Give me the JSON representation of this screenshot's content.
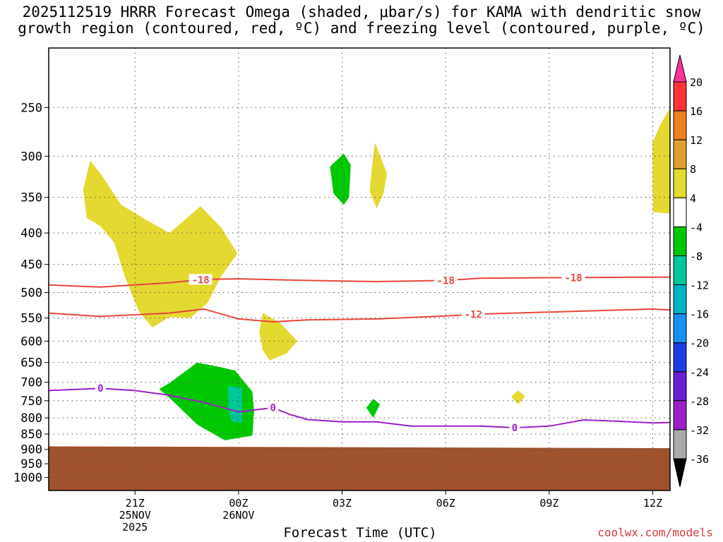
{
  "title": {
    "line1": "2025112519 HRRR Forecast Omega (shaded, μbar/s) for KAMA with dendritic snow",
    "line2": "growth region (contoured, red, ºC) and freezing level (contoured, purple, ºC)"
  },
  "xlabel": "Forecast Time (UTC)",
  "credit": "coolwx.com/models",
  "chart_data": {
    "type": "contour",
    "x_domain_hours": [
      -2.5,
      15.5
    ],
    "y_axis": {
      "scale": "log-pressure",
      "range_mb": [
        200,
        1050
      ],
      "ticks": [
        "250",
        "300",
        "350",
        "400",
        "450",
        "500",
        "550",
        "600",
        "650",
        "700",
        "750",
        "800",
        "850",
        "900",
        "950",
        "1000"
      ]
    },
    "x_ticks": [
      {
        "hour": 0,
        "label": "21Z",
        "sub1": "25NOV",
        "sub2": "2025"
      },
      {
        "hour": 3,
        "label": "00Z",
        "sub1": "26NOV",
        "sub2": ""
      },
      {
        "hour": 6,
        "label": "03Z",
        "sub1": "",
        "sub2": ""
      },
      {
        "hour": 9,
        "label": "06Z",
        "sub1": "",
        "sub2": ""
      },
      {
        "hour": 12,
        "label": "09Z",
        "sub1": "",
        "sub2": ""
      },
      {
        "hour": 15,
        "label": "12Z",
        "sub1": "",
        "sub2": ""
      }
    ],
    "grid": true,
    "ground_color": "#a0522d",
    "ground_top_mb": [
      [
        -2.5,
        890
      ],
      [
        3,
        892
      ],
      [
        15.5,
        896
      ]
    ],
    "colorbar": {
      "labels": [
        "20",
        "16",
        "12",
        "8",
        "4",
        "-4",
        "-8",
        "-12",
        "-16",
        "-20",
        "-24",
        "-28",
        "-32",
        "-36"
      ],
      "colors": [
        "#ff3399",
        "#ff3333",
        "#f07f20",
        "#e0a030",
        "#e0dc30",
        "#ffffff",
        "#00c800",
        "#00c89a",
        "#00b4c8",
        "#1890f0",
        "#1e3ce6",
        "#6a1ed2",
        "#9b1fc8",
        "#aaaaaa",
        "#000000"
      ]
    },
    "shading": [
      {
        "color": "#e4d930",
        "pts": [
          [
            -1.3,
            305
          ],
          [
            -1.0,
            320
          ],
          [
            -0.4,
            360
          ],
          [
            0.3,
            380
          ],
          [
            1.0,
            400
          ],
          [
            1.9,
            362
          ],
          [
            2.5,
            392
          ],
          [
            2.97,
            432
          ],
          [
            2.5,
            470
          ],
          [
            2.1,
            520
          ],
          [
            1.6,
            550
          ],
          [
            1.0,
            548
          ],
          [
            0.5,
            570
          ],
          [
            0.1,
            535
          ],
          [
            -0.3,
            470
          ],
          [
            -0.6,
            415
          ],
          [
            -1.0,
            390
          ],
          [
            -1.4,
            378
          ],
          [
            -1.5,
            340
          ]
        ]
      },
      {
        "color": "#e4d930",
        "pts": [
          [
            3.7,
            540
          ],
          [
            4.2,
            560
          ],
          [
            4.7,
            600
          ],
          [
            4.4,
            628
          ],
          [
            3.9,
            645
          ],
          [
            3.7,
            620
          ],
          [
            3.6,
            580
          ]
        ]
      },
      {
        "color": "#e4d930",
        "pts": [
          [
            6.95,
            285
          ],
          [
            7.3,
            320
          ],
          [
            7.2,
            345
          ],
          [
            7.0,
            365
          ],
          [
            6.8,
            342
          ],
          [
            6.85,
            318
          ]
        ]
      },
      {
        "color": "#e4d930",
        "pts": [
          [
            15.5,
            250
          ],
          [
            15.2,
            268
          ],
          [
            14.99,
            285
          ],
          [
            15.0,
            370
          ],
          [
            15.5,
            372
          ]
        ]
      },
      {
        "color": "#e4d930",
        "pts": [
          [
            11.1,
            722
          ],
          [
            11.3,
            738
          ],
          [
            11.1,
            760
          ],
          [
            10.9,
            738
          ]
        ]
      },
      {
        "color": "#00c800",
        "pts": [
          [
            6.05,
            297
          ],
          [
            6.25,
            310
          ],
          [
            6.2,
            350
          ],
          [
            6.05,
            360
          ],
          [
            5.75,
            345
          ],
          [
            5.65,
            312
          ]
        ]
      },
      {
        "color": "#00c800",
        "pts": [
          [
            1.0,
            702
          ],
          [
            1.8,
            650
          ],
          [
            2.4,
            660
          ],
          [
            2.9,
            670
          ],
          [
            3.4,
            725
          ],
          [
            3.45,
            780
          ],
          [
            3.4,
            855
          ],
          [
            2.6,
            870
          ],
          [
            1.8,
            820
          ],
          [
            1.0,
            742
          ],
          [
            0.7,
            718
          ]
        ]
      },
      {
        "color": "#00c89a",
        "pts": [
          [
            2.7,
            710
          ],
          [
            3.1,
            715
          ],
          [
            3.1,
            815
          ],
          [
            2.8,
            810
          ],
          [
            2.7,
            770
          ]
        ]
      },
      {
        "color": "#00c800",
        "pts": [
          [
            6.9,
            745
          ],
          [
            7.1,
            760
          ],
          [
            6.9,
            800
          ],
          [
            6.7,
            770
          ]
        ]
      }
    ],
    "contours": [
      {
        "color": "#e8453d",
        "width": 2,
        "pts": [
          [
            -2.5,
            486
          ],
          [
            -1,
            490
          ],
          [
            1,
            482
          ],
          [
            2,
            476
          ],
          [
            3,
            475
          ],
          [
            5,
            478
          ],
          [
            7,
            480
          ],
          [
            9,
            478
          ],
          [
            10,
            474
          ],
          [
            12,
            473
          ],
          [
            15,
            472
          ],
          [
            15.5,
            472
          ]
        ],
        "labels": [
          {
            "x": 1.9,
            "text": "-18"
          },
          {
            "x": 9.0,
            "text": "-18"
          },
          {
            "x": 12.7,
            "text": "-18"
          }
        ]
      },
      {
        "color": "#e8453d",
        "width": 2,
        "pts": [
          [
            -2.5,
            540
          ],
          [
            -1,
            547
          ],
          [
            1,
            540
          ],
          [
            2,
            532
          ],
          [
            3,
            552
          ],
          [
            4,
            558
          ],
          [
            5,
            554
          ],
          [
            7,
            552
          ],
          [
            9,
            546
          ],
          [
            10,
            542
          ],
          [
            12,
            538
          ],
          [
            15,
            532
          ],
          [
            15.5,
            534
          ]
        ],
        "labels": [
          {
            "x": 9.8,
            "text": "-12"
          }
        ]
      },
      {
        "color": "#9b1fc8",
        "width": 2,
        "pts": [
          [
            -2.5,
            722
          ],
          [
            -1,
            716
          ],
          [
            0,
            722
          ],
          [
            1,
            735
          ],
          [
            2,
            755
          ],
          [
            3,
            782
          ],
          [
            4,
            770
          ],
          [
            4.5,
            790
          ],
          [
            5,
            805
          ],
          [
            6,
            812
          ],
          [
            7,
            812
          ],
          [
            8,
            825
          ],
          [
            10,
            825
          ],
          [
            11,
            830
          ],
          [
            12,
            825
          ],
          [
            13,
            806
          ],
          [
            14,
            810
          ],
          [
            15,
            815
          ],
          [
            15.5,
            814
          ]
        ],
        "labels": [
          {
            "x": -1.0,
            "text": "0"
          },
          {
            "x": 4.0,
            "text": "0"
          },
          {
            "x": 11.0,
            "text": "0"
          }
        ]
      }
    ]
  }
}
